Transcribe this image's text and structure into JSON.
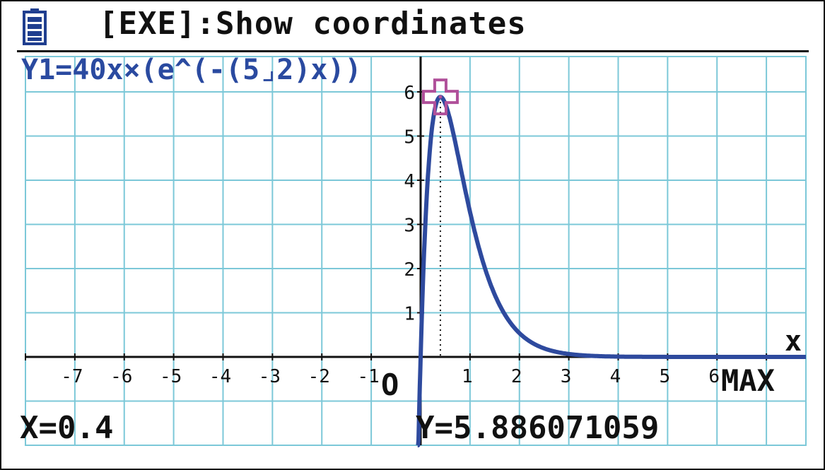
{
  "status_bar": {
    "icon": "battery-icon",
    "hint": "[EXE]:Show coordinates"
  },
  "function_label": "Y1=40x×(e^(-(5⌟2)x))",
  "readout": {
    "x": "X=0.4",
    "y": "Y=5.886071059"
  },
  "labels": {
    "origin": "O",
    "max": "MAX",
    "x_axis": "x"
  },
  "colors": {
    "grid": "#7cc8d8",
    "curve": "#2e4a9e",
    "cursor": "#b0509a",
    "text": "#111111",
    "function_label": "#2a4aa0"
  },
  "chart_data": {
    "type": "line",
    "function": "40x·e^(-(5/2)x)",
    "xlim": [
      -8,
      7.8
    ],
    "ylim": [
      -2,
      6.8
    ],
    "x_tick_labels": [
      "-7",
      "-6",
      "-5",
      "-4",
      "-3",
      "-2",
      "-1",
      "1",
      "2",
      "3",
      "4",
      "5",
      "6"
    ],
    "y_tick_labels": [
      "1",
      "2",
      "3",
      "4",
      "5",
      "6"
    ],
    "cursor": {
      "x": 0.4,
      "y": 5.886071059
    },
    "grid": true
  }
}
